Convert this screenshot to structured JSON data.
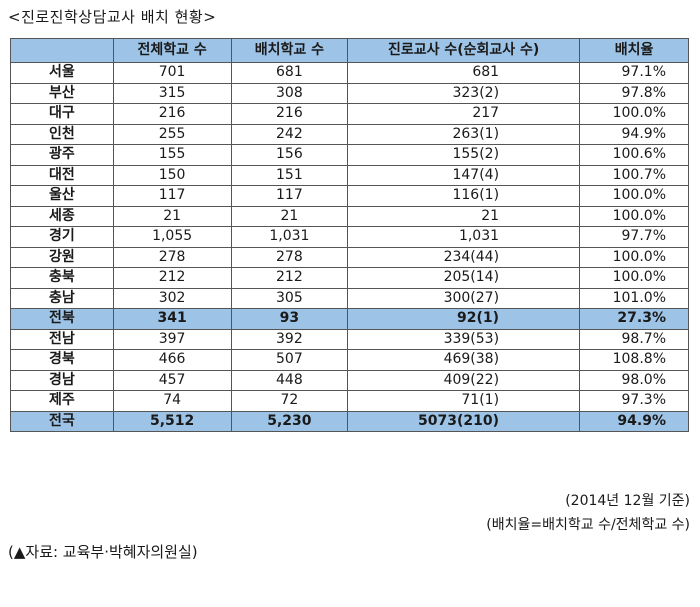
{
  "title": "<진로진학상담교사 배치 현황>",
  "headers": [
    "",
    "전체학교 수",
    "배치학교 수",
    "진로교사 수(순회교사 수)",
    "배치율"
  ],
  "rows": [
    {
      "region": "서울",
      "total": "701",
      "placed": "681",
      "teachers": "681",
      "rate": "97.1%",
      "hl": false
    },
    {
      "region": "부산",
      "total": "315",
      "placed": "308",
      "teachers": "323(2)",
      "rate": "97.8%",
      "hl": false
    },
    {
      "region": "대구",
      "total": "216",
      "placed": "216",
      "teachers": "217",
      "rate": "100.0%",
      "hl": false
    },
    {
      "region": "인천",
      "total": "255",
      "placed": "242",
      "teachers": "263(1)",
      "rate": "94.9%",
      "hl": false
    },
    {
      "region": "광주",
      "total": "155",
      "placed": "156",
      "teachers": "155(2)",
      "rate": "100.6%",
      "hl": false
    },
    {
      "region": "대전",
      "total": "150",
      "placed": "151",
      "teachers": "147(4)",
      "rate": "100.7%",
      "hl": false
    },
    {
      "region": "울산",
      "total": "117",
      "placed": "117",
      "teachers": "116(1)",
      "rate": "100.0%",
      "hl": false
    },
    {
      "region": "세종",
      "total": "21",
      "placed": "21",
      "teachers": "21",
      "rate": "100.0%",
      "hl": false
    },
    {
      "region": "경기",
      "total": "1,055",
      "placed": "1,031",
      "teachers": "1,031",
      "rate": "97.7%",
      "hl": false
    },
    {
      "region": "강원",
      "total": "278",
      "placed": "278",
      "teachers": "234(44)",
      "rate": "100.0%",
      "hl": false
    },
    {
      "region": "충북",
      "total": "212",
      "placed": "212",
      "teachers": "205(14)",
      "rate": "100.0%",
      "hl": false
    },
    {
      "region": "충남",
      "total": "302",
      "placed": "305",
      "teachers": "300(27)",
      "rate": "101.0%",
      "hl": false
    },
    {
      "region": "전북",
      "total": "341",
      "placed": "93",
      "teachers": "92(1)",
      "rate": "27.3%",
      "hl": true
    },
    {
      "region": "전남",
      "total": "397",
      "placed": "392",
      "teachers": "339(53)",
      "rate": "98.7%",
      "hl": false
    },
    {
      "region": "경북",
      "total": "466",
      "placed": "507",
      "teachers": "469(38)",
      "rate": "108.8%",
      "hl": false
    },
    {
      "region": "경남",
      "total": "457",
      "placed": "448",
      "teachers": "409(22)",
      "rate": "98.0%",
      "hl": false
    },
    {
      "region": "제주",
      "total": "74",
      "placed": "72",
      "teachers": "71(1)",
      "rate": "97.3%",
      "hl": false
    },
    {
      "region": "전국",
      "total": "5,512",
      "placed": "5,230",
      "teachers": "5073(210)",
      "rate": "94.9%",
      "hl": true
    }
  ],
  "footnote_date": "(2014년 12월 기준)",
  "footnote_formula": "(배치율=배치학교 수/전체학교 수)",
  "source": "(▲자료: 교육부·박혜자의원실)"
}
